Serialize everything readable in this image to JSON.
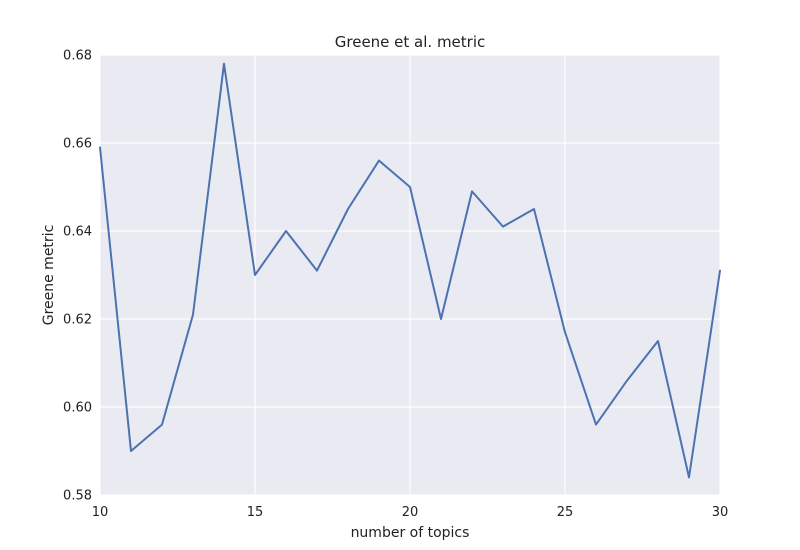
{
  "chart_data": {
    "type": "line",
    "title": "Greene et al. metric",
    "xlabel": "number of topics",
    "ylabel": "Greene metric",
    "xlim": [
      10,
      30
    ],
    "ylim": [
      0.58,
      0.68
    ],
    "xticks": [
      10,
      15,
      20,
      25,
      30
    ],
    "yticks": [
      0.58,
      0.6,
      0.62,
      0.64,
      0.66,
      0.68
    ],
    "xtick_labels": [
      "10",
      "15",
      "20",
      "25",
      "30"
    ],
    "ytick_labels": [
      "0.58",
      "0.60",
      "0.62",
      "0.64",
      "0.66",
      "0.68"
    ],
    "grid": true,
    "background_color": "#EAEAF2",
    "grid_color": "#FFFFFF",
    "series": [
      {
        "color": "#4C72B0",
        "x": [
          10,
          11,
          12,
          13,
          14,
          15,
          16,
          17,
          18,
          19,
          20,
          21,
          22,
          23,
          24,
          25,
          26,
          27,
          28,
          29,
          30
        ],
        "y": [
          0.659,
          0.59,
          0.596,
          0.621,
          0.678,
          0.63,
          0.64,
          0.631,
          0.645,
          0.656,
          0.65,
          0.62,
          0.649,
          0.641,
          0.645,
          0.617,
          0.596,
          0.606,
          0.615,
          0.584,
          0.631
        ]
      }
    ]
  }
}
